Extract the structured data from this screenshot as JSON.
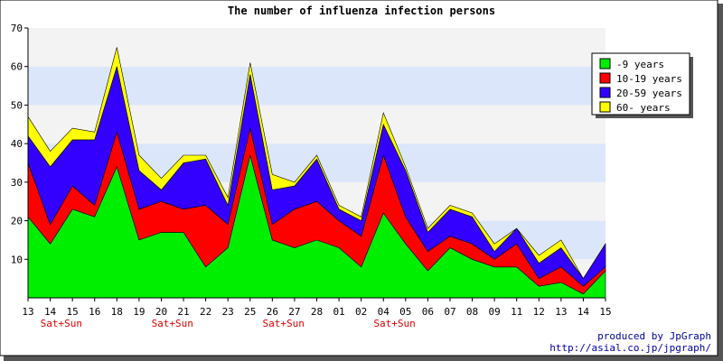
{
  "chart_data": {
    "type": "area",
    "stacked": true,
    "title": "The number of influenza infection persons",
    "xlabel": "",
    "ylabel": "",
    "ylim": [
      0,
      70
    ],
    "yticks": [
      10,
      20,
      30,
      40,
      50,
      60,
      70
    ],
    "grid": true,
    "legend_position": "right",
    "categories": [
      "13",
      "14",
      "15",
      "16",
      "18",
      "19",
      "20",
      "21",
      "22",
      "23",
      "25",
      "26",
      "27",
      "28",
      "01",
      "02",
      "04",
      "05",
      "06",
      "07",
      "08",
      "09",
      "11",
      "12",
      "13",
      "14",
      "15"
    ],
    "weekend_labels": [
      {
        "index": 2,
        "text": "Sat+Sun"
      },
      {
        "index": 7,
        "text": "Sat+Sun"
      },
      {
        "index": 12,
        "text": "Sat+Sun"
      },
      {
        "index": 17,
        "text": "Sat+Sun"
      }
    ],
    "series": [
      {
        "name": "-9 years",
        "color": "#00ee00",
        "values": [
          21,
          14,
          23,
          21,
          34,
          15,
          17,
          17,
          8,
          13,
          37,
          15,
          13,
          15,
          13,
          8,
          22,
          14,
          7,
          13,
          10,
          8,
          8,
          3,
          4,
          1,
          7
        ]
      },
      {
        "name": "10-19 years",
        "color": "#ff0000",
        "values": [
          14,
          5,
          6,
          3,
          9,
          8,
          8,
          6,
          16,
          6,
          7,
          4,
          10,
          10,
          7,
          8,
          15,
          7,
          5,
          3,
          4,
          2,
          6,
          2,
          4,
          2,
          1
        ]
      },
      {
        "name": "20-59 years",
        "color": "#3300ff",
        "values": [
          7,
          15,
          12,
          17,
          17,
          10,
          3,
          12,
          12,
          5,
          14,
          9,
          6,
          11,
          3,
          4,
          8,
          12,
          5,
          7,
          7,
          2,
          4,
          4,
          5,
          2,
          6
        ]
      },
      {
        "name": "60- years",
        "color": "#ffff00",
        "values": [
          5,
          4,
          3,
          2,
          5,
          4,
          3,
          2,
          1,
          2,
          3,
          4,
          1,
          1,
          1,
          1,
          3,
          1,
          1,
          1,
          1,
          2,
          0,
          2,
          2,
          0,
          0
        ]
      }
    ],
    "band_colors": [
      "#f3f3f3",
      "#dce6fb"
    ]
  },
  "credits": {
    "line1": "produced by JpGraph",
    "line2": "http://asial.co.jp/jpgraph/"
  }
}
